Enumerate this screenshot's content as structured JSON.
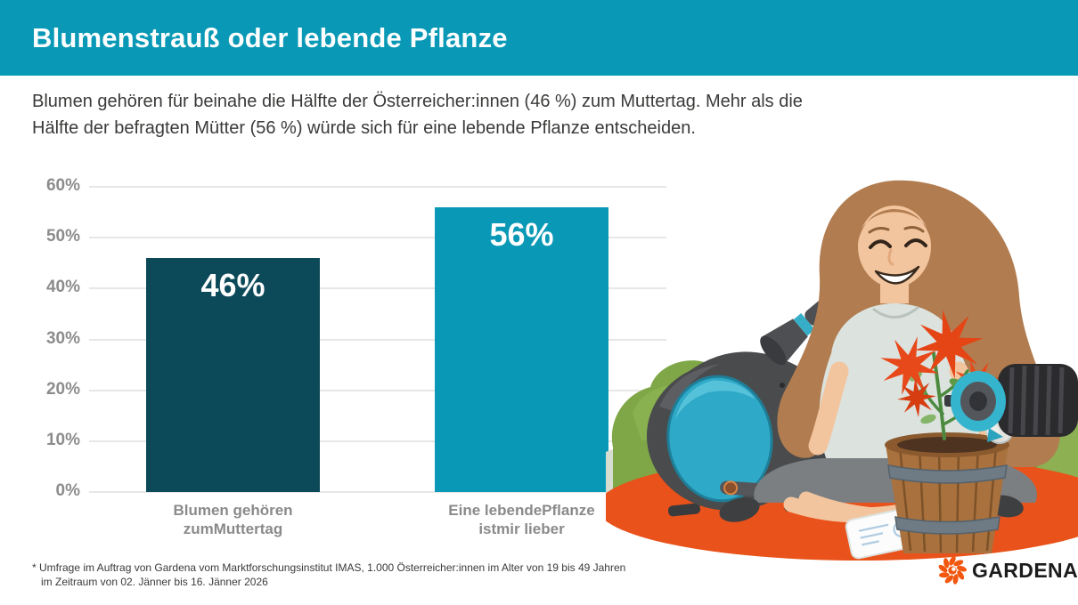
{
  "header": {
    "title": "Blumenstrauß oder lebende Pflanze"
  },
  "intro": {
    "lines": [
      "Blumen gehören für beinahe die Hälfte der Österreicher:innen (46 %) zum Muttertag. Mehr als die",
      "Hälfte der befragten Mütter (56 %) würde sich für eine lebende Pflanze entscheiden."
    ]
  },
  "chart_data": {
    "type": "bar",
    "title": "",
    "xlabel": "",
    "ylabel": "",
    "categories": [
      [
        "Blumen gehören",
        "zumMuttertag"
      ],
      [
        "Eine lebendePflanze",
        "istmir lieber"
      ]
    ],
    "values": [
      46,
      56
    ],
    "bar_labels": [
      "46%",
      "56%"
    ],
    "bar_colors": [
      "#0D4A59",
      "#0999B6"
    ],
    "ylim": [
      0,
      60
    ],
    "yticks": [
      0,
      10,
      20,
      30,
      40,
      50,
      60
    ],
    "ytick_labels": [
      "0%",
      "10%",
      "20%",
      "30%",
      "40%",
      "50%",
      "60%"
    ],
    "grid": true,
    "legend": false
  },
  "footnote": {
    "lines": [
      "* Umfrage im Auftrag von Gardena vom Marktforschungsinstitut IMAS, 1.000 Österreicher:innen im Alter von 19 bis 49 Jahren",
      "im Zeitraum von 02. Jänner bis 16. Jänner 2026"
    ]
  },
  "logo": {
    "brand": "GARDENA"
  },
  "illustration": {
    "alt": "Woman with long brown hair sitting cross-legged on an orange rug in front of a hedge, with a Gardena hose reel, spray nozzle, a wooden barrel planter with red flowers, a sprinkler connector and a paper sheet"
  },
  "colors": {
    "header_teal": "#0999B6",
    "bar_dark_teal": "#0D4A59",
    "bar_teal": "#0999B6",
    "rug_orange": "#E9521A",
    "logo_orange": "#F2570F",
    "axis_label_gray": "#8C8C8C",
    "text_dark": "#3A3A39"
  }
}
